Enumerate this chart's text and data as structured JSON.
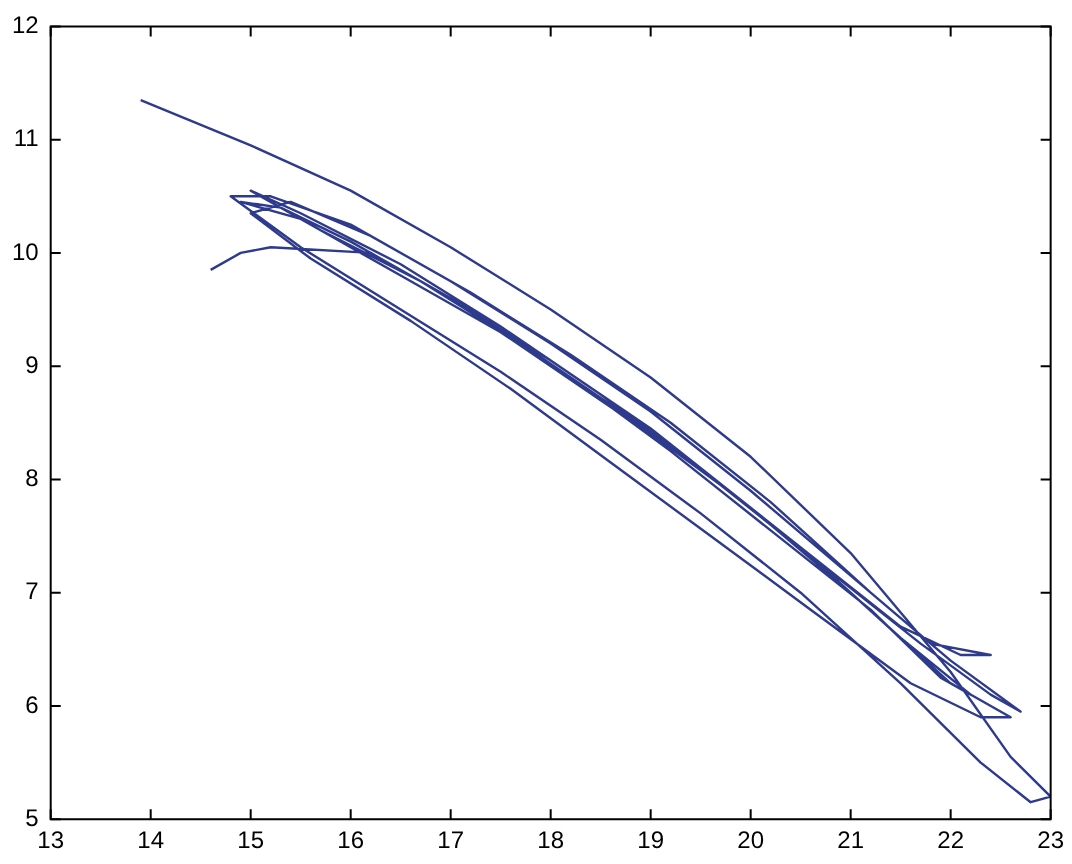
{
  "chart_data": {
    "type": "line",
    "color": "#2e3a8c",
    "xlim": [
      13,
      23
    ],
    "ylim": [
      5,
      12
    ],
    "xticks": [
      13,
      14,
      15,
      16,
      17,
      18,
      19,
      20,
      21,
      22,
      23
    ],
    "yticks": [
      5,
      6,
      7,
      8,
      9,
      10,
      11,
      12
    ],
    "x": [
      13.9,
      15,
      16,
      17,
      18,
      19,
      20,
      21,
      22,
      22.6,
      23,
      22.8,
      22.3,
      21.5,
      20.5,
      19.5,
      18.5,
      17.5,
      16.5,
      15.5,
      14.8,
      15.2,
      16,
      17,
      18,
      19,
      20,
      21,
      21.8,
      22.4,
      22.1,
      21.5,
      20.5,
      19.5,
      18.5,
      17.5,
      16.5,
      15.5,
      14.9,
      15.3,
      16,
      17,
      18,
      19,
      20,
      21,
      22,
      22.6,
      22.3,
      21.6,
      20.6,
      19.6,
      18.6,
      17.6,
      16.6,
      15.6,
      15.0,
      15.4,
      16.2,
      17.2,
      18.2,
      19.2,
      20.2,
      21.2,
      22.0,
      22.7,
      22.4,
      21.7,
      20.7,
      19.7,
      18.7,
      17.7,
      16.7,
      15.7,
      15.0,
      15.5,
      16.5,
      17.5,
      18.5,
      19.5,
      20.5,
      21.5,
      22.2,
      21.9,
      21.2,
      20.2,
      19.2,
      18.2,
      17.2,
      16.2,
      15.2,
      14.9,
      14.6
    ],
    "values": [
      11.35,
      10.95,
      10.55,
      10.05,
      9.5,
      8.9,
      8.2,
      7.35,
      6.3,
      5.55,
      5.2,
      5.15,
      5.5,
      6.2,
      7.0,
      7.7,
      8.35,
      8.95,
      9.5,
      10.05,
      10.5,
      10.5,
      10.25,
      9.75,
      9.2,
      8.6,
      7.9,
      7.15,
      6.55,
      6.45,
      6.45,
      6.7,
      7.4,
      8.1,
      8.7,
      9.3,
      9.8,
      10.3,
      10.45,
      10.4,
      10.1,
      9.6,
      9.05,
      8.45,
      7.75,
      7.0,
      6.2,
      5.9,
      5.9,
      6.2,
      6.85,
      7.5,
      8.15,
      8.8,
      9.4,
      9.95,
      10.35,
      10.45,
      10.15,
      9.65,
      9.1,
      8.5,
      7.8,
      7.0,
      6.4,
      5.95,
      6.1,
      6.55,
      7.25,
      7.95,
      8.6,
      9.2,
      9.75,
      10.2,
      10.55,
      10.35,
      9.9,
      9.35,
      8.75,
      8.1,
      7.4,
      6.6,
      6.1,
      6.25,
      6.85,
      7.55,
      8.25,
      8.9,
      9.5,
      10.0,
      10.05,
      10.0,
      9.85
    ]
  }
}
